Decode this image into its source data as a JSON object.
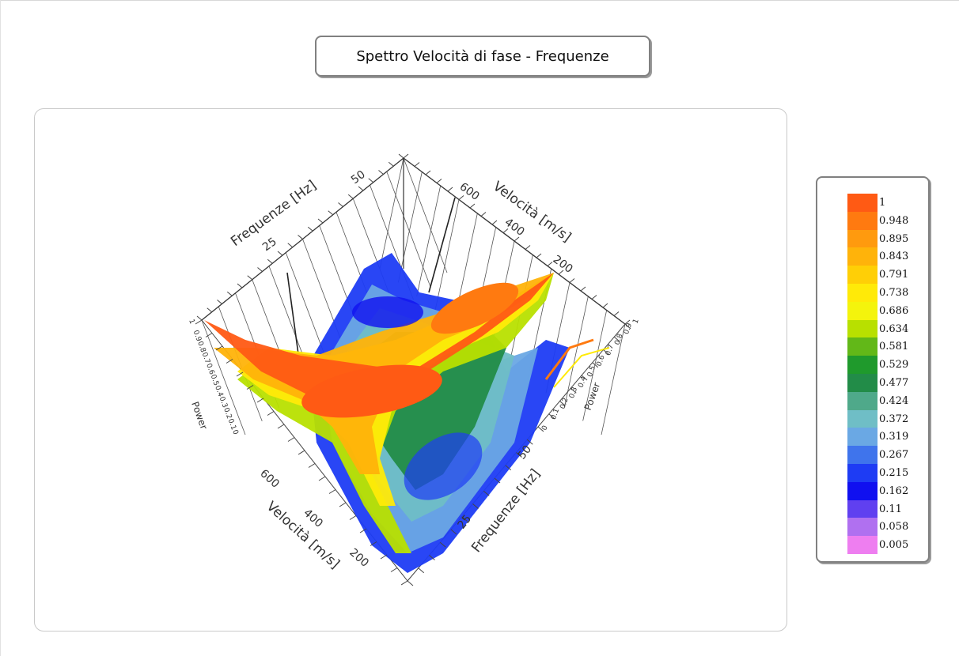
{
  "title": "Spettro Velocità di fase - Frequenze",
  "legend": {
    "entries": [
      {
        "label": "1",
        "color": "#ff5a14"
      },
      {
        "label": "0.948",
        "color": "#ff7a10"
      },
      {
        "label": "0.895",
        "color": "#ff9a0e"
      },
      {
        "label": "0.843",
        "color": "#ffb30a"
      },
      {
        "label": "0.791",
        "color": "#ffcf06"
      },
      {
        "label": "0.738",
        "color": "#ffea08"
      },
      {
        "label": "0.686",
        "color": "#f4f40c"
      },
      {
        "label": "0.634",
        "color": "#b8e000"
      },
      {
        "label": "0.581",
        "color": "#62b818"
      },
      {
        "label": "0.529",
        "color": "#1f9a2c"
      },
      {
        "label": "0.477",
        "color": "#228c48"
      },
      {
        "label": "0.424",
        "color": "#4fa98a"
      },
      {
        "label": "0.372",
        "color": "#6fbec6"
      },
      {
        "label": "0.319",
        "color": "#6aa8e4"
      },
      {
        "label": "0.267",
        "color": "#3f74ec"
      },
      {
        "label": "0.215",
        "color": "#1e3cf4"
      },
      {
        "label": "0.162",
        "color": "#1010f0"
      },
      {
        "label": "0.11",
        "color": "#6040f0"
      },
      {
        "label": "0.058",
        "color": "#b070f0"
      },
      {
        "label": "0.005",
        "color": "#ee7ef0"
      }
    ]
  },
  "chart_data": {
    "type": "surface3d",
    "title": "Spettro Velocità di fase - Frequenze",
    "axes": {
      "frequenze": {
        "label": "Frequenze [Hz]",
        "ticks": [
          "25",
          "50"
        ],
        "range": [
          0,
          60
        ]
      },
      "velocita": {
        "label": "Velocità [m/s]",
        "ticks": [
          "200",
          "400",
          "600"
        ],
        "range": [
          100,
          700
        ]
      },
      "power": {
        "label": "Power",
        "ticks": [
          "0",
          "0.1",
          "0.2",
          "0.3",
          "0.4",
          "0.5",
          "0.6",
          "0.7",
          "0.8",
          "0.9",
          "1"
        ],
        "range": [
          0,
          1
        ]
      }
    },
    "ridges": [
      {
        "velocita": [
          700,
          600,
          500,
          400,
          300,
          250
        ],
        "frequenze": [
          5,
          10,
          18,
          26,
          35,
          42
        ],
        "power": [
          1,
          0.97,
          0.95,
          0.93,
          0.9,
          0.88
        ]
      },
      {
        "velocita": [
          200,
          250,
          320
        ],
        "frequenze": [
          50,
          40,
          32
        ],
        "power": [
          1,
          0.9,
          0.85
        ]
      }
    ],
    "colorbar": {
      "min": 0.005,
      "max": 1
    }
  }
}
